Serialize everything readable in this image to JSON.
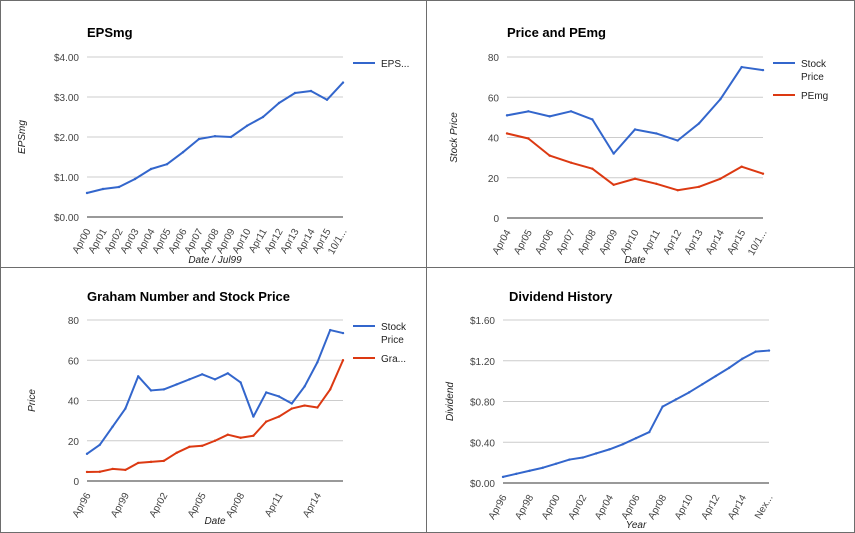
{
  "colors": {
    "blue": "#3366cc",
    "red": "#dc3912",
    "grid": "#cccccc",
    "baseline": "#333333"
  },
  "chart_data": [
    {
      "id": "eps",
      "type": "line",
      "title": "EPSmg",
      "xlabel": "Date / Jul99",
      "ylabel": "EPSmg",
      "categories": [
        "Apr00",
        "Apr01",
        "Apr02",
        "Apr03",
        "Apr04",
        "Apr05",
        "Apr06",
        "Apr07",
        "Apr08",
        "Apr09",
        "Apr10",
        "Apr11",
        "Apr12",
        "Apr13",
        "Apr14",
        "Apr15",
        "10/1..."
      ],
      "x": [
        0,
        1,
        2,
        3,
        4,
        5,
        6,
        7,
        8,
        9,
        10,
        11,
        12,
        13,
        14,
        15,
        16
      ],
      "ylim": [
        0,
        4
      ],
      "yticks": [
        0,
        1,
        2,
        3,
        4
      ],
      "ytick_labels": [
        "$0.00",
        "$1.00",
        "$2.00",
        "$3.00",
        "$4.00"
      ],
      "series": [
        {
          "name": "EPS...",
          "color": "#3366cc",
          "values": [
            0.6,
            0.7,
            0.75,
            0.95,
            1.2,
            1.32,
            1.62,
            1.95,
            2.02,
            2.0,
            2.28,
            2.5,
            2.85,
            3.1,
            3.15,
            2.93,
            3.36
          ]
        }
      ],
      "legend": "right",
      "grid": true
    },
    {
      "id": "price_pe",
      "type": "line",
      "title": "Price and PEmg",
      "xlabel": "Date",
      "ylabel": "Stock Price",
      "categories": [
        "Apr04",
        "Apr05",
        "Apr06",
        "Apr07",
        "Apr08",
        "Apr09",
        "Apr10",
        "Apr11",
        "Apr12",
        "Apr13",
        "Apr14",
        "Apr15",
        "10/1..."
      ],
      "x": [
        0,
        1,
        2,
        3,
        4,
        5,
        6,
        7,
        8,
        9,
        10,
        11,
        12
      ],
      "ylim": [
        0,
        80
      ],
      "yticks": [
        0,
        20,
        40,
        60,
        80
      ],
      "ytick_labels": [
        "0",
        "20",
        "40",
        "60",
        "80"
      ],
      "series": [
        {
          "name": "Stock Price",
          "color": "#3366cc",
          "values": [
            51,
            53,
            50.5,
            53,
            49,
            32,
            44,
            42,
            38.5,
            47,
            59,
            75,
            73.5
          ]
        },
        {
          "name": "PEmg",
          "color": "#dc3912",
          "values": [
            42,
            39.5,
            31,
            27.5,
            24.5,
            16.5,
            19.5,
            17,
            13.8,
            15.5,
            19.5,
            25.5,
            22
          ]
        }
      ],
      "legend": "right",
      "grid": true
    },
    {
      "id": "graham",
      "type": "line",
      "title": "Graham Number and Stock Price",
      "xlabel": "Date",
      "ylabel": "Price",
      "categories": [
        "Apr96",
        "Apr99",
        "Apr02",
        "Apr05",
        "Apr08",
        "Apr11",
        "Apr14"
      ],
      "cat_x": [
        0,
        3,
        6,
        9,
        12,
        15,
        18
      ],
      "x": [
        0,
        1,
        2,
        3,
        4,
        5,
        6,
        7,
        8,
        9,
        10,
        11,
        12,
        13,
        14,
        15,
        16,
        17,
        18,
        19,
        20
      ],
      "ylim": [
        0,
        80
      ],
      "yticks": [
        0,
        20,
        40,
        60,
        80
      ],
      "ytick_labels": [
        "0",
        "20",
        "40",
        "60",
        "80"
      ],
      "series": [
        {
          "name": "Stock Price",
          "color": "#3366cc",
          "values": [
            13.5,
            18,
            27,
            36,
            52,
            45,
            45.5,
            48,
            50.5,
            53,
            50.5,
            53.5,
            49,
            32,
            44,
            42,
            38.5,
            47,
            59,
            75,
            73.5
          ]
        },
        {
          "name": "Gra...",
          "color": "#dc3912",
          "values": [
            4.5,
            4.6,
            6,
            5.5,
            9,
            9.5,
            10,
            14,
            17,
            17.5,
            20,
            23,
            21.5,
            22.5,
            29.5,
            32,
            36,
            37.5,
            36.5,
            45.5,
            60
          ]
        }
      ],
      "legend": "right",
      "grid": true
    },
    {
      "id": "dividend",
      "type": "line",
      "title": "Dividend History",
      "xlabel": "Year",
      "ylabel": "Dividend",
      "categories": [
        "Apr96",
        "Apr98",
        "Apr00",
        "Apr02",
        "Apr04",
        "Apr06",
        "Apr08",
        "Apr10",
        "Apr12",
        "Apr14",
        "Nex..."
      ],
      "cat_x": [
        0,
        2,
        4,
        6,
        8,
        10,
        12,
        14,
        16,
        18,
        20
      ],
      "x": [
        0,
        1,
        2,
        3,
        4,
        5,
        6,
        7,
        8,
        9,
        10,
        11,
        12,
        13,
        14,
        15,
        16,
        17,
        18,
        19,
        20
      ],
      "ylim": [
        0,
        1.6
      ],
      "yticks": [
        0,
        0.4,
        0.8,
        1.2,
        1.6
      ],
      "ytick_labels": [
        "$0.00",
        "$0.40",
        "$0.80",
        "$1.20",
        "$1.60"
      ],
      "series": [
        {
          "name": "",
          "color": "#3366cc",
          "values": [
            0.06,
            0.09,
            0.12,
            0.15,
            0.19,
            0.23,
            0.25,
            0.29,
            0.33,
            0.38,
            0.44,
            0.5,
            0.75,
            0.82,
            0.89,
            0.97,
            1.05,
            1.13,
            1.22,
            1.29,
            1.3
          ]
        }
      ],
      "legend": "none",
      "grid": true
    }
  ]
}
